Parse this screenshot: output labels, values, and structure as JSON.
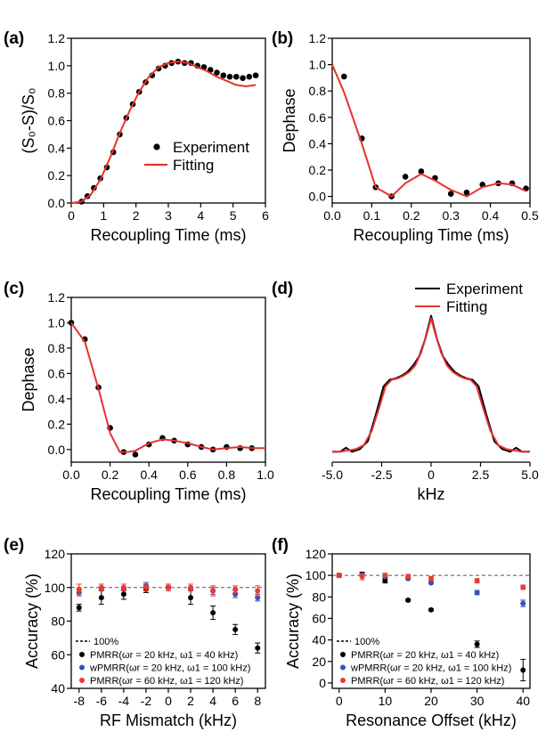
{
  "colors": {
    "fit": "#e8322e",
    "black": "#000000",
    "blue": "#3a4fb8",
    "red": "#ea3a30"
  },
  "chart_data": [
    {
      "id": "a",
      "panel_label": "(a)",
      "type": "line",
      "xlabel": "Recoupling Time (ms)",
      "ylabel": "(S₀-S)/S₀",
      "xlim": [
        0,
        6
      ],
      "ylim": [
        0,
        1.2
      ],
      "xticks": [
        0,
        1,
        2,
        3,
        4,
        5,
        6
      ],
      "xticklabels": [
        "0",
        "1",
        "2",
        "3",
        "4",
        "5",
        "6"
      ],
      "yticks": [
        0,
        0.2,
        0.4,
        0.6,
        0.8,
        1.0,
        1.2
      ],
      "yticklabels": [
        "0.0",
        "0.2",
        "0.4",
        "0.6",
        "0.8",
        "1.0",
        "1.2"
      ],
      "legend": [
        "Experiment",
        "Fitting"
      ],
      "series": [
        {
          "name": "Experiment",
          "kind": "scatter",
          "color": "#000000",
          "x": [
            0.32,
            0.5,
            0.7,
            0.9,
            1.1,
            1.3,
            1.5,
            1.7,
            1.9,
            2.1,
            2.3,
            2.5,
            2.7,
            2.9,
            3.1,
            3.3,
            3.5,
            3.7,
            3.9,
            4.1,
            4.3,
            4.5,
            4.7,
            4.9,
            5.1,
            5.3,
            5.5,
            5.7
          ],
          "y": [
            0.01,
            0.05,
            0.11,
            0.18,
            0.26,
            0.37,
            0.5,
            0.62,
            0.72,
            0.81,
            0.88,
            0.93,
            0.98,
            1.0,
            1.02,
            1.03,
            1.02,
            1.02,
            1.0,
            0.99,
            0.97,
            0.95,
            0.93,
            0.92,
            0.92,
            0.91,
            0.92,
            0.93
          ]
        },
        {
          "name": "Fitting",
          "kind": "line",
          "color": "#e8322e",
          "x": [
            0,
            0.3,
            0.6,
            0.9,
            1.2,
            1.5,
            1.8,
            2.1,
            2.4,
            2.7,
            3.0,
            3.3,
            3.6,
            3.9,
            4.2,
            4.5,
            4.8,
            5.1,
            5.4,
            5.7
          ],
          "y": [
            0,
            0.01,
            0.06,
            0.17,
            0.33,
            0.51,
            0.67,
            0.81,
            0.92,
            0.99,
            1.02,
            1.03,
            1.02,
            0.99,
            0.96,
            0.92,
            0.89,
            0.86,
            0.85,
            0.86
          ]
        }
      ]
    },
    {
      "id": "b",
      "panel_label": "(b)",
      "type": "line",
      "xlabel": "Recoupling Time (ms)",
      "ylabel": "Dephase",
      "xlim": [
        0,
        0.5
      ],
      "ylim": [
        -0.05,
        1.2
      ],
      "xticks": [
        0,
        0.1,
        0.2,
        0.3,
        0.4,
        0.5
      ],
      "xticklabels": [
        "0.0",
        "0.1",
        "0.2",
        "0.3",
        "0.4",
        "0.5"
      ],
      "yticks": [
        0,
        0.2,
        0.4,
        0.6,
        0.8,
        1.0,
        1.2
      ],
      "yticklabels": [
        "0.0",
        "0.2",
        "0.4",
        "0.6",
        "0.8",
        "1.0",
        "1.2"
      ],
      "series": [
        {
          "name": "Experiment",
          "kind": "scatter",
          "color": "#000000",
          "x": [
            0.03,
            0.075,
            0.11,
            0.15,
            0.185,
            0.225,
            0.26,
            0.3,
            0.34,
            0.38,
            0.42,
            0.455,
            0.49
          ],
          "y": [
            0.91,
            0.44,
            0.07,
            0.0,
            0.15,
            0.19,
            0.14,
            0.02,
            0.03,
            0.09,
            0.1,
            0.1,
            0.06
          ]
        },
        {
          "name": "Fitting",
          "kind": "line",
          "color": "#e8322e",
          "x": [
            0,
            0.03,
            0.075,
            0.11,
            0.15,
            0.185,
            0.225,
            0.26,
            0.3,
            0.34,
            0.38,
            0.42,
            0.455,
            0.49
          ],
          "y": [
            1.0,
            0.79,
            0.4,
            0.07,
            0.0,
            0.1,
            0.17,
            0.12,
            0.05,
            0.0,
            0.07,
            0.1,
            0.09,
            0.04
          ]
        }
      ]
    },
    {
      "id": "c",
      "panel_label": "(c)",
      "type": "line",
      "xlabel": "Recoupling Time (ms)",
      "ylabel": "Dephase",
      "xlim": [
        0,
        1.0
      ],
      "ylim": [
        -0.1,
        1.2
      ],
      "xticks": [
        0,
        0.2,
        0.4,
        0.6,
        0.8,
        1.0
      ],
      "xticklabels": [
        "0.0",
        "0.2",
        "0.4",
        "0.6",
        "0.8",
        "1.0"
      ],
      "yticks": [
        0,
        0.2,
        0.4,
        0.6,
        0.8,
        1.0,
        1.2
      ],
      "yticklabels": [
        "0.0",
        "0.2",
        "0.4",
        "0.6",
        "0.8",
        "1.0",
        "1.2"
      ],
      "series": [
        {
          "name": "Experiment",
          "kind": "scatter",
          "color": "#000000",
          "x": [
            0.0,
            0.07,
            0.14,
            0.2,
            0.27,
            0.33,
            0.4,
            0.47,
            0.53,
            0.6,
            0.67,
            0.73,
            0.8,
            0.87,
            0.93
          ],
          "y": [
            1.0,
            0.87,
            0.49,
            0.17,
            -0.02,
            -0.04,
            0.04,
            0.09,
            0.07,
            0.04,
            0.02,
            0.0,
            0.02,
            0.01,
            0.01
          ]
        },
        {
          "name": "Fitting",
          "kind": "line",
          "color": "#e8322e",
          "x": [
            0,
            0.07,
            0.14,
            0.2,
            0.25,
            0.29,
            0.33,
            0.4,
            0.47,
            0.53,
            0.6,
            0.67,
            0.73,
            0.8,
            0.87,
            0.93,
            1.0
          ],
          "y": [
            1.0,
            0.85,
            0.48,
            0.13,
            -0.02,
            -0.02,
            -0.01,
            0.05,
            0.08,
            0.07,
            0.05,
            0.02,
            0.0,
            0.01,
            0.02,
            0.01,
            0.01
          ]
        }
      ]
    },
    {
      "id": "d",
      "panel_label": "(d)",
      "type": "line",
      "xlabel": "kHz",
      "ylabel": "",
      "xlim": [
        -5,
        5
      ],
      "ylim": [
        -0.08,
        1.18
      ],
      "xticks": [
        -5,
        -2.5,
        0,
        2.5,
        5
      ],
      "xticklabels": [
        "-5.0",
        "-2.5",
        "0",
        "2.5",
        "5.0"
      ],
      "legend": [
        "Experiment",
        "Fitting"
      ],
      "series": [
        {
          "name": "Experiment",
          "kind": "line",
          "color": "#000000",
          "x": [
            -5,
            -4.6,
            -4.3,
            -4.0,
            -3.6,
            -3.2,
            -2.8,
            -2.4,
            -2.1,
            -1.8,
            -1.5,
            -1.2,
            -0.9,
            -0.6,
            -0.3,
            0,
            0.3,
            0.6,
            0.9,
            1.2,
            1.5,
            1.8,
            2.1,
            2.4,
            2.8,
            3.2,
            3.6,
            4.0,
            4.3,
            4.6,
            5
          ],
          "y": [
            0.0,
            0.0,
            0.03,
            0.0,
            0.02,
            0.08,
            0.28,
            0.5,
            0.55,
            0.56,
            0.58,
            0.61,
            0.66,
            0.73,
            0.86,
            1.04,
            0.86,
            0.73,
            0.66,
            0.61,
            0.58,
            0.56,
            0.55,
            0.5,
            0.28,
            0.08,
            0.02,
            0.0,
            0.03,
            0.0,
            0.0
          ]
        },
        {
          "name": "Fitting",
          "kind": "line",
          "color": "#e8322e",
          "x": [
            -5,
            -4.6,
            -4.2,
            -3.8,
            -3.4,
            -3.0,
            -2.6,
            -2.3,
            -2.0,
            -1.7,
            -1.4,
            -1.1,
            -0.8,
            -0.5,
            -0.25,
            0,
            0.25,
            0.5,
            0.8,
            1.1,
            1.4,
            1.7,
            2.0,
            2.3,
            2.6,
            3.0,
            3.4,
            3.8,
            4.2,
            4.6,
            5
          ],
          "y": [
            0.0,
            0.0,
            0.01,
            0.02,
            0.05,
            0.16,
            0.35,
            0.5,
            0.55,
            0.56,
            0.58,
            0.61,
            0.66,
            0.76,
            0.88,
            1.02,
            0.88,
            0.76,
            0.66,
            0.61,
            0.58,
            0.56,
            0.55,
            0.5,
            0.35,
            0.16,
            0.05,
            0.02,
            0.01,
            0.0,
            0.0
          ]
        }
      ]
    },
    {
      "id": "e",
      "panel_label": "(e)",
      "type": "scatter",
      "xlabel": "RF Mismatch (kHz)",
      "ylabel": "Accuracy (%)",
      "xlim": [
        -8.7,
        8.7
      ],
      "ylim": [
        40,
        120
      ],
      "xticks": [
        -8,
        -6,
        -4,
        -2,
        0,
        2,
        4,
        6,
        8
      ],
      "xticklabels": [
        "-8",
        "-6",
        "-4",
        "-2",
        "0",
        "2",
        "4",
        "6",
        "8"
      ],
      "yticks": [
        40,
        60,
        80,
        100,
        120
      ],
      "yticklabels": [
        "40",
        "60",
        "80",
        "100",
        "120"
      ],
      "reference_line": {
        "y": 100,
        "label": "100%"
      },
      "series": [
        {
          "name": "PMRR(ωr = 20 kHz,  ω1 = 40 kHz)",
          "color": "#000000",
          "x": [
            -8,
            -6,
            -4,
            -2,
            0,
            2,
            4,
            6,
            8
          ],
          "y": [
            88,
            94,
            96,
            99,
            100,
            94,
            85,
            75,
            64
          ],
          "err": [
            2,
            4,
            3,
            2,
            2,
            4,
            4,
            3,
            3
          ]
        },
        {
          "name": "wPMRR(ωr = 20 kHz,  ω1 = 100 kHz)",
          "color": "#3a4fb8",
          "x": [
            -8,
            -6,
            -4,
            -2,
            0,
            2,
            4,
            6,
            8
          ],
          "y": [
            97,
            99,
            99,
            101,
            100,
            99,
            98,
            96,
            94
          ],
          "err": [
            2,
            1,
            1,
            2,
            1,
            1,
            2,
            2,
            2
          ]
        },
        {
          "name": "PMRR(ωr = 60 kHz,  ω1 = 120 kHz)",
          "color": "#ea3a30",
          "x": [
            -8,
            -6,
            -4,
            -2,
            0,
            2,
            4,
            6,
            8
          ],
          "y": [
            99,
            100,
            100,
            100,
            100,
            100,
            98,
            99,
            98
          ],
          "err": [
            3,
            2,
            2,
            2,
            2,
            2,
            3,
            2,
            3
          ]
        }
      ]
    },
    {
      "id": "f",
      "panel_label": "(f)",
      "type": "scatter",
      "xlabel": "Resonance Offset (kHz)",
      "ylabel": "Accuracy (%)",
      "xlim": [
        -1.5,
        41.5
      ],
      "ylim": [
        -5,
        120
      ],
      "xticks": [
        0,
        10,
        20,
        30,
        40
      ],
      "xticklabels": [
        "0",
        "10",
        "20",
        "30",
        "40"
      ],
      "yticks": [
        0,
        20,
        40,
        60,
        80,
        100,
        120
      ],
      "yticklabels": [
        "0",
        "20",
        "40",
        "60",
        "80",
        "100",
        "120"
      ],
      "reference_line": {
        "y": 100,
        "label": "100%"
      },
      "series": [
        {
          "name": "PMRR(ωr = 20 kHz,  ω1 = 40 kHz)",
          "color": "#000000",
          "x": [
            0,
            5,
            10,
            15,
            20,
            30,
            40
          ],
          "y": [
            100,
            101,
            95,
            77,
            68,
            36,
            12
          ],
          "err": [
            1,
            2,
            2,
            1,
            1,
            3,
            10
          ]
        },
        {
          "name": "wPMRR(ωr = 20 kHz,  ω1 = 100 kHz)",
          "color": "#3a4fb8",
          "x": [
            0,
            5,
            10,
            15,
            20,
            30,
            40
          ],
          "y": [
            100,
            100,
            99,
            97,
            93,
            84,
            74
          ],
          "err": [
            1,
            1,
            1,
            1,
            1,
            2,
            3
          ]
        },
        {
          "name": "PMRR(ωr = 60 kHz,  ω1 = 120 kHz)",
          "color": "#ea3a30",
          "x": [
            0,
            5,
            10,
            15,
            20,
            30,
            40
          ],
          "y": [
            100,
            99,
            100,
            99,
            97,
            95,
            89
          ],
          "err": [
            2,
            3,
            2,
            2,
            2,
            2,
            2
          ]
        }
      ]
    }
  ]
}
